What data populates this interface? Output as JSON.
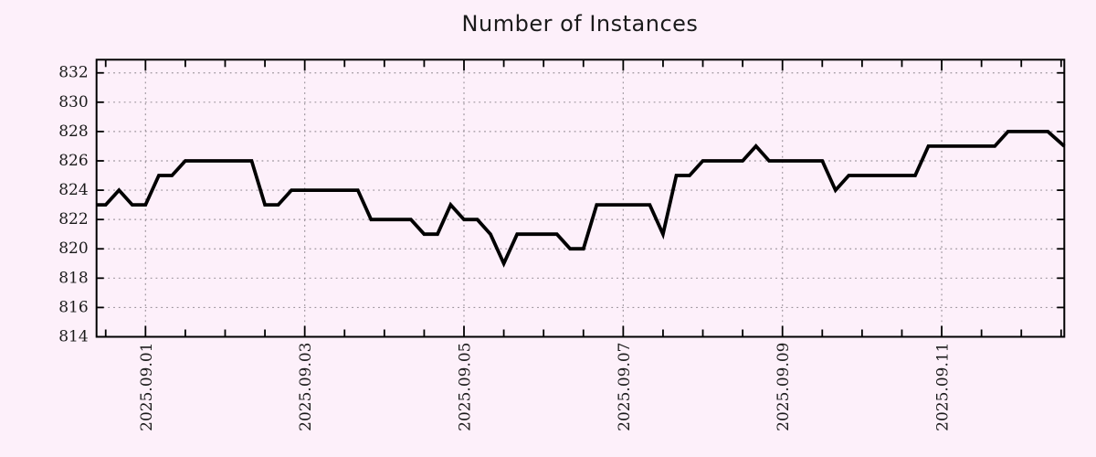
{
  "colors": {
    "background": "#fdf0fa",
    "line": "#000000",
    "border": "#000000",
    "grid": "#9d959d",
    "title_text": "#1b1b1b",
    "tick_text": "#1a1a1a"
  },
  "chart_data": {
    "type": "line",
    "title": "Number of Instances",
    "x_axis": {
      "kind": "time",
      "unit": "days relative to 2025-09-01 00:00",
      "min": -0.615,
      "max": 11.54,
      "major_ticks": [
        {
          "t": 0,
          "label": "2025.09.01"
        },
        {
          "t": 2,
          "label": "2025.09.03"
        },
        {
          "t": 4,
          "label": "2025.09.05"
        },
        {
          "t": 6,
          "label": "2025.09.07"
        },
        {
          "t": 8,
          "label": "2025.09.09"
        },
        {
          "t": 10,
          "label": "2025.09.11"
        }
      ],
      "minor_tick_interval": 0.5
    },
    "y_axis": {
      "min": 814,
      "max": 832.9,
      "major_ticks": [
        814,
        816,
        818,
        820,
        822,
        824,
        826,
        828,
        830,
        832
      ]
    },
    "grid": {
      "horizontal": true,
      "vertical": true,
      "style": "dotted"
    },
    "legend": null,
    "series": [
      {
        "name": "Number of Instances",
        "color": "#000000",
        "points": [
          [
            -0.615,
            823
          ],
          [
            -0.5,
            823
          ],
          [
            -0.333,
            824
          ],
          [
            -0.167,
            823
          ],
          [
            0,
            823
          ],
          [
            0.167,
            825
          ],
          [
            0.333,
            825
          ],
          [
            0.5,
            826
          ],
          [
            1.333,
            826
          ],
          [
            1.5,
            823
          ],
          [
            1.667,
            823
          ],
          [
            1.833,
            824
          ],
          [
            2.667,
            824
          ],
          [
            2.833,
            822
          ],
          [
            3.333,
            822
          ],
          [
            3.5,
            821
          ],
          [
            3.667,
            821
          ],
          [
            3.833,
            823
          ],
          [
            4.0,
            822
          ],
          [
            4.167,
            822
          ],
          [
            4.333,
            821
          ],
          [
            4.5,
            819
          ],
          [
            4.667,
            821
          ],
          [
            5.167,
            821
          ],
          [
            5.333,
            820
          ],
          [
            5.5,
            820
          ],
          [
            5.667,
            823
          ],
          [
            6.333,
            823
          ],
          [
            6.5,
            821
          ],
          [
            6.667,
            825
          ],
          [
            6.833,
            825
          ],
          [
            7.0,
            826
          ],
          [
            7.5,
            826
          ],
          [
            7.667,
            827
          ],
          [
            7.833,
            826
          ],
          [
            8.5,
            826
          ],
          [
            8.667,
            824
          ],
          [
            8.833,
            825
          ],
          [
            9.667,
            825
          ],
          [
            9.833,
            827
          ],
          [
            10.667,
            827
          ],
          [
            10.833,
            828
          ],
          [
            11.333,
            828
          ],
          [
            11.54,
            827
          ]
        ]
      }
    ]
  }
}
